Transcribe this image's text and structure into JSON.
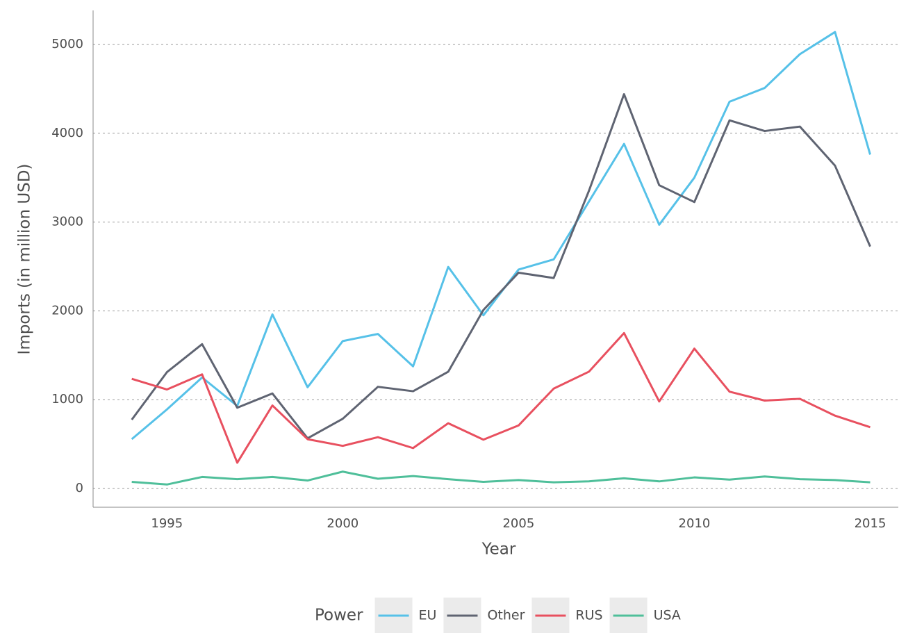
{
  "chart_data": {
    "type": "line",
    "x_label": "Year",
    "y_label": "Imports (in million USD)",
    "legend_title": "Power",
    "x": [
      1994,
      1995,
      1996,
      1997,
      1998,
      1999,
      2000,
      2001,
      2002,
      2003,
      2004,
      2005,
      2006,
      2007,
      2008,
      2009,
      2010,
      2011,
      2012,
      2013,
      2014,
      2015
    ],
    "series": [
      {
        "name": "EU",
        "color": "#56c1e8",
        "values": [
          556,
          890,
          1250,
          930,
          1960,
          1140,
          1660,
          1740,
          1375,
          2495,
          1950,
          2465,
          2580,
          3230,
          3880,
          2970,
          3500,
          4355,
          4510,
          4890,
          5140,
          3760
        ]
      },
      {
        "name": "Other",
        "color": "#5f6472",
        "values": [
          775,
          1310,
          1625,
          910,
          1070,
          565,
          785,
          1145,
          1095,
          1315,
          2010,
          2430,
          2370,
          3350,
          4440,
          3415,
          3225,
          4145,
          4025,
          4075,
          3635,
          2725
        ]
      },
      {
        "name": "RUS",
        "color": "#e8505f",
        "values": [
          1235,
          1115,
          1285,
          290,
          935,
          555,
          480,
          578,
          455,
          735,
          550,
          710,
          1125,
          1315,
          1750,
          980,
          1575,
          1090,
          990,
          1010,
          820,
          690
        ]
      },
      {
        "name": "USA",
        "color": "#4fbf9a",
        "values": [
          75,
          45,
          130,
          105,
          130,
          90,
          190,
          110,
          140,
          105,
          75,
          95,
          70,
          80,
          115,
          80,
          125,
          100,
          135,
          105,
          95,
          70
        ]
      }
    ],
    "xlim": [
      1992.9,
      2015.8
    ],
    "xticks": [
      1995,
      2000,
      2005,
      2010,
      2015
    ],
    "ylim": [
      -211,
      5383
    ],
    "yticks": [
      0,
      1000,
      2000,
      3000,
      4000,
      5000
    ],
    "grid": true,
    "legend_position": "bottom"
  }
}
